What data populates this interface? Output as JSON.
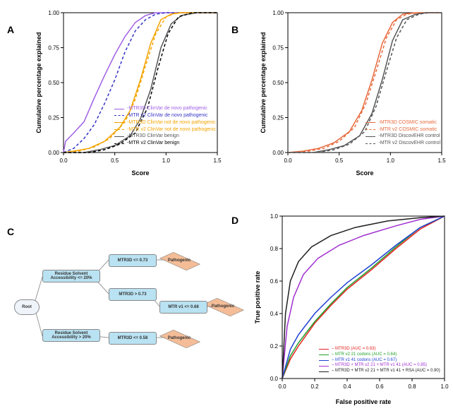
{
  "panelA": {
    "label": "A",
    "xlabel": "Score",
    "ylabel": "Cumulative percentage explained",
    "xlim": [
      0.0,
      1.5
    ],
    "ylim": [
      0.0,
      1.0
    ],
    "xticks": [
      0.0,
      0.5,
      1.0,
      1.5
    ],
    "yticks": [
      0.0,
      0.25,
      0.5,
      0.75,
      1.0
    ],
    "xtickLabels": [
      "0.0",
      "0.5",
      "1.0",
      "1.5"
    ],
    "ytickLabels": [
      "0.00",
      "0.25",
      "0.50",
      "0.75",
      "1.00"
    ],
    "series": [
      {
        "label": "-MTR3D ClinVar de novo pathogenic",
        "color": "#a060e6",
        "dash": false,
        "pts": [
          [
            0.0,
            0.0
          ],
          [
            0.02,
            0.08
          ],
          [
            0.1,
            0.14
          ],
          [
            0.2,
            0.22
          ],
          [
            0.3,
            0.39
          ],
          [
            0.4,
            0.55
          ],
          [
            0.5,
            0.7
          ],
          [
            0.6,
            0.83
          ],
          [
            0.7,
            0.93
          ],
          [
            0.8,
            0.98
          ],
          [
            0.9,
            1.0
          ],
          [
            1.5,
            1.0
          ]
        ]
      },
      {
        "label": "-MTR v2 ClinVar de novo pathogenic",
        "color": "#3434c6",
        "dash": true,
        "pts": [
          [
            0.0,
            0.0
          ],
          [
            0.1,
            0.03
          ],
          [
            0.2,
            0.1
          ],
          [
            0.3,
            0.2
          ],
          [
            0.4,
            0.35
          ],
          [
            0.5,
            0.52
          ],
          [
            0.6,
            0.72
          ],
          [
            0.7,
            0.87
          ],
          [
            0.8,
            0.95
          ],
          [
            0.9,
            0.99
          ],
          [
            1.0,
            1.0
          ],
          [
            1.5,
            1.0
          ]
        ]
      },
      {
        "label": "-MTR3D ClinVar not de novo pathogenic",
        "color": "#f4a300",
        "dash": false,
        "pts": [
          [
            0.0,
            0.0
          ],
          [
            0.1,
            0.01
          ],
          [
            0.25,
            0.03
          ],
          [
            0.4,
            0.08
          ],
          [
            0.55,
            0.18
          ],
          [
            0.65,
            0.3
          ],
          [
            0.75,
            0.52
          ],
          [
            0.85,
            0.78
          ],
          [
            0.95,
            0.95
          ],
          [
            1.05,
            0.99
          ],
          [
            1.15,
            1.0
          ],
          [
            1.5,
            1.0
          ]
        ]
      },
      {
        "label": "-MTR v2 ClinVar not de novo pathogenic",
        "color": "#f4a300",
        "dash": true,
        "pts": [
          [
            0.0,
            0.0
          ],
          [
            0.15,
            0.01
          ],
          [
            0.3,
            0.04
          ],
          [
            0.45,
            0.1
          ],
          [
            0.6,
            0.22
          ],
          [
            0.7,
            0.38
          ],
          [
            0.8,
            0.62
          ],
          [
            0.9,
            0.85
          ],
          [
            1.0,
            0.97
          ],
          [
            1.1,
            1.0
          ],
          [
            1.5,
            1.0
          ]
        ]
      },
      {
        "label": "-MTR3D ClinVar benign",
        "color": "#555555",
        "dash": false,
        "pts": [
          [
            0.0,
            0.0
          ],
          [
            0.2,
            0.0
          ],
          [
            0.35,
            0.02
          ],
          [
            0.5,
            0.05
          ],
          [
            0.65,
            0.12
          ],
          [
            0.75,
            0.24
          ],
          [
            0.85,
            0.45
          ],
          [
            0.95,
            0.75
          ],
          [
            1.05,
            0.92
          ],
          [
            1.15,
            0.98
          ],
          [
            1.3,
            1.0
          ],
          [
            1.5,
            1.0
          ]
        ]
      },
      {
        "label": "-MTR v2 ClinVar benign",
        "color": "#000000",
        "dash": true,
        "pts": [
          [
            0.0,
            0.0
          ],
          [
            0.25,
            0.0
          ],
          [
            0.4,
            0.02
          ],
          [
            0.55,
            0.06
          ],
          [
            0.7,
            0.14
          ],
          [
            0.82,
            0.32
          ],
          [
            0.92,
            0.6
          ],
          [
            1.02,
            0.85
          ],
          [
            1.12,
            0.97
          ],
          [
            1.25,
            1.0
          ],
          [
            1.5,
            1.0
          ]
        ]
      }
    ]
  },
  "panelB": {
    "label": "B",
    "xlabel": "Score",
    "ylabel": "Cumulative percentage explained",
    "xlim": [
      0.0,
      1.5
    ],
    "ylim": [
      0.0,
      1.0
    ],
    "xticks": [
      0.0,
      0.5,
      1.0,
      1.5
    ],
    "yticks": [
      0.0,
      0.25,
      0.5,
      0.75,
      1.0
    ],
    "xtickLabels": [
      "0.0",
      "0.5",
      "1.0",
      "1.5"
    ],
    "ytickLabels": [
      "0.00",
      "0.25",
      "0.50",
      "0.75",
      "1.00"
    ],
    "series": [
      {
        "label": "-MTR3D COSMIC somatic",
        "color": "#e76a3c",
        "dash": false,
        "pts": [
          [
            0.0,
            0.0
          ],
          [
            0.15,
            0.01
          ],
          [
            0.3,
            0.03
          ],
          [
            0.45,
            0.07
          ],
          [
            0.6,
            0.15
          ],
          [
            0.72,
            0.3
          ],
          [
            0.82,
            0.52
          ],
          [
            0.92,
            0.78
          ],
          [
            1.02,
            0.93
          ],
          [
            1.12,
            0.99
          ],
          [
            1.25,
            1.0
          ],
          [
            1.5,
            1.0
          ]
        ]
      },
      {
        "label": "-MTR v2 COSMIC somatic",
        "color": "#e76a3c",
        "dash": true,
        "pts": [
          [
            0.0,
            0.0
          ],
          [
            0.2,
            0.01
          ],
          [
            0.35,
            0.03
          ],
          [
            0.5,
            0.08
          ],
          [
            0.65,
            0.18
          ],
          [
            0.76,
            0.35
          ],
          [
            0.86,
            0.58
          ],
          [
            0.96,
            0.82
          ],
          [
            1.06,
            0.95
          ],
          [
            1.16,
            0.99
          ],
          [
            1.28,
            1.0
          ],
          [
            1.5,
            1.0
          ]
        ]
      },
      {
        "label": "-MTR3D DiscovEHR control",
        "color": "#555555",
        "dash": false,
        "pts": [
          [
            0.0,
            0.0
          ],
          [
            0.25,
            0.0
          ],
          [
            0.4,
            0.02
          ],
          [
            0.55,
            0.05
          ],
          [
            0.7,
            0.12
          ],
          [
            0.82,
            0.28
          ],
          [
            0.92,
            0.52
          ],
          [
            1.02,
            0.8
          ],
          [
            1.12,
            0.95
          ],
          [
            1.25,
            0.99
          ],
          [
            1.35,
            1.0
          ],
          [
            1.5,
            1.0
          ]
        ]
      },
      {
        "label": "-MTR v2 DiscovEHR control",
        "color": "#555555",
        "dash": true,
        "pts": [
          [
            0.0,
            0.0
          ],
          [
            0.28,
            0.0
          ],
          [
            0.45,
            0.02
          ],
          [
            0.6,
            0.06
          ],
          [
            0.75,
            0.15
          ],
          [
            0.86,
            0.33
          ],
          [
            0.96,
            0.58
          ],
          [
            1.06,
            0.82
          ],
          [
            1.16,
            0.95
          ],
          [
            1.28,
            0.99
          ],
          [
            1.38,
            1.0
          ],
          [
            1.5,
            1.0
          ]
        ]
      }
    ]
  },
  "panelC": {
    "label": "C",
    "root": "Root",
    "box1": "Residue Solvent\nAccessibility <= 20%",
    "box2": "Residue Solvent\nAccessibility > 20%",
    "box3": "MTR3D <= 0.73",
    "box4": "MTR3D > 0.73",
    "box5": "MTR3D <= 0.58",
    "box6": "MTR v1 <= 0.68",
    "leaf": "Pathogenic"
  },
  "panelD": {
    "label": "D",
    "xlabel": "False positive rate",
    "ylabel": "True positive rate",
    "xlim": [
      0.0,
      1.0
    ],
    "ylim": [
      0.0,
      1.0
    ],
    "xticks": [
      0.0,
      0.2,
      0.4,
      0.6,
      0.8,
      1.0
    ],
    "yticks": [
      0.0,
      0.2,
      0.4,
      0.6,
      0.8,
      1.0
    ],
    "xtickLabels": [
      "0.0",
      "0.2",
      "0.4",
      "0.6",
      "0.8",
      "1.0"
    ],
    "ytickLabels": [
      "0.0",
      "0.2",
      "0.4",
      "0.6",
      "0.8",
      "1.0"
    ],
    "series": [
      {
        "label": "– MTR3D (AUC = 0.63)",
        "color": "#e62020",
        "pts": [
          [
            0.0,
            0.0
          ],
          [
            0.05,
            0.12
          ],
          [
            0.1,
            0.2
          ],
          [
            0.2,
            0.34
          ],
          [
            0.3,
            0.45
          ],
          [
            0.4,
            0.55
          ],
          [
            0.55,
            0.67
          ],
          [
            0.7,
            0.8
          ],
          [
            0.85,
            0.92
          ],
          [
            1.0,
            1.0
          ]
        ]
      },
      {
        "label": "– MTR v2 21 codons (AUC = 0.64)",
        "color": "#1fa02a",
        "pts": [
          [
            0.0,
            0.0
          ],
          [
            0.05,
            0.14
          ],
          [
            0.1,
            0.22
          ],
          [
            0.2,
            0.35
          ],
          [
            0.3,
            0.46
          ],
          [
            0.4,
            0.56
          ],
          [
            0.55,
            0.68
          ],
          [
            0.7,
            0.81
          ],
          [
            0.85,
            0.93
          ],
          [
            1.0,
            1.0
          ]
        ]
      },
      {
        "label": "– MTR v1 41 codons (AUC = 0.67)",
        "color": "#1e40d4",
        "pts": [
          [
            0.0,
            0.0
          ],
          [
            0.05,
            0.18
          ],
          [
            0.1,
            0.27
          ],
          [
            0.2,
            0.4
          ],
          [
            0.3,
            0.5
          ],
          [
            0.4,
            0.59
          ],
          [
            0.55,
            0.7
          ],
          [
            0.7,
            0.82
          ],
          [
            0.85,
            0.93
          ],
          [
            1.0,
            1.0
          ]
        ]
      },
      {
        "label": "– MTR3D + MTR v2 21 + MTR v1 41 (AUC = 0.85)",
        "color": "#a030d0",
        "pts": [
          [
            0.0,
            0.0
          ],
          [
            0.03,
            0.32
          ],
          [
            0.07,
            0.5
          ],
          [
            0.13,
            0.64
          ],
          [
            0.22,
            0.74
          ],
          [
            0.35,
            0.82
          ],
          [
            0.5,
            0.88
          ],
          [
            0.7,
            0.94
          ],
          [
            0.85,
            0.98
          ],
          [
            1.0,
            1.0
          ]
        ]
      },
      {
        "label": "– MTR3D + MTR v2 21 + MTR v1 41 + RSA (AUC = 0.90)",
        "color": "#202020",
        "pts": [
          [
            0.0,
            0.0
          ],
          [
            0.02,
            0.4
          ],
          [
            0.05,
            0.6
          ],
          [
            0.1,
            0.72
          ],
          [
            0.18,
            0.81
          ],
          [
            0.3,
            0.88
          ],
          [
            0.45,
            0.93
          ],
          [
            0.65,
            0.97
          ],
          [
            0.85,
            0.99
          ],
          [
            1.0,
            1.0
          ]
        ]
      }
    ]
  },
  "style": {
    "axisColor": "#000000",
    "tickFont": 8,
    "labelFont": 9
  }
}
